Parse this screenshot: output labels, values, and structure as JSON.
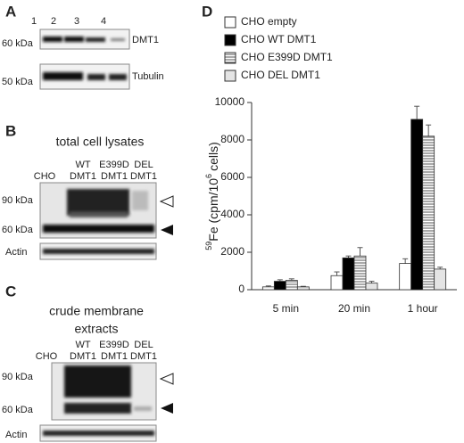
{
  "panels": {
    "a": {
      "label": "A",
      "lanes": [
        "1",
        "2",
        "3",
        "4"
      ],
      "markers": [
        "60 kDa",
        "50 kDa"
      ],
      "blots": [
        "DMT1",
        "Tubulin"
      ]
    },
    "b": {
      "label": "B",
      "title": "total cell lysates",
      "columns": [
        [
          "CHO"
        ],
        [
          "WT",
          "DMT1"
        ],
        [
          "E399D",
          "DMT1"
        ],
        [
          "DEL",
          "DMT1"
        ]
      ],
      "markers": [
        "90 kDa",
        "60 kDa"
      ],
      "loading": "Actin"
    },
    "c": {
      "label": "C",
      "title": [
        "crude membrane",
        "extracts"
      ],
      "columns": [
        [
          "CHO"
        ],
        [
          "WT",
          "DMT1"
        ],
        [
          "E399D",
          "DMT1"
        ],
        [
          "DEL",
          "DMT1"
        ]
      ],
      "markers": [
        "90 kDa",
        "60 kDa"
      ],
      "loading": "Actin"
    },
    "d": {
      "label": "D"
    }
  },
  "chart_data": {
    "type": "bar",
    "categories": [
      "5 min",
      "20 min",
      "1 hour"
    ],
    "series": [
      {
        "name": "CHO empty",
        "color": "#ffffff",
        "values": [
          150,
          750,
          1400
        ],
        "errors": [
          50,
          200,
          250
        ]
      },
      {
        "name": "CHO WT DMT1",
        "color": "#000000",
        "values": [
          450,
          1700,
          9100
        ],
        "errors": [
          80,
          100,
          700
        ]
      },
      {
        "name": "CHO E399D DMT1",
        "color": "#ffffff",
        "pattern": "horizontal-stripes",
        "values": [
          500,
          1800,
          8200
        ],
        "errors": [
          80,
          450,
          600
        ]
      },
      {
        "name": "CHO DEL DMT1",
        "color": "#e4e4e4",
        "values": [
          150,
          350,
          1100
        ],
        "errors": [
          30,
          100,
          100
        ]
      }
    ],
    "ylim": [
      0,
      10000
    ],
    "yticks": [
      0,
      2000,
      4000,
      6000,
      8000,
      10000
    ],
    "ylabel": {
      "isotope": "59",
      "text": "Fe (cpm/10",
      "exponent": "6",
      "unit": "cells)"
    }
  }
}
